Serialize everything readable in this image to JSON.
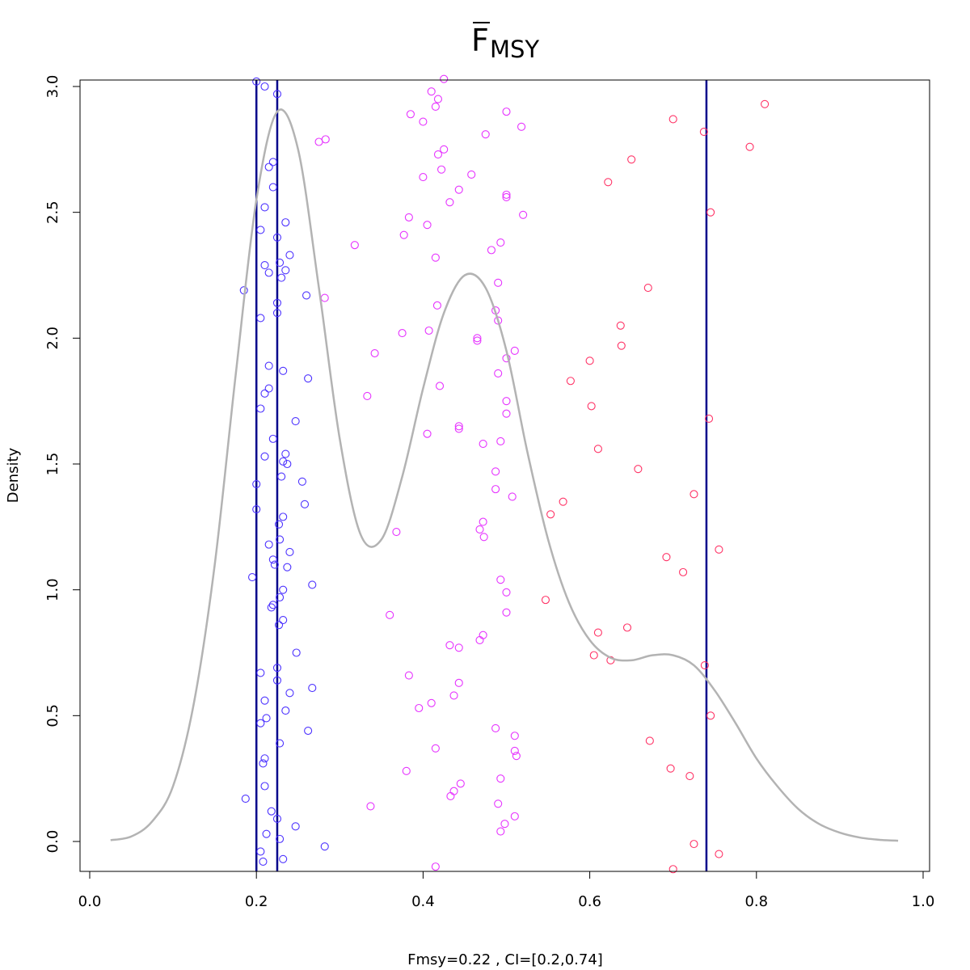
{
  "chart_data": {
    "type": "scatter",
    "title": "F",
    "title_subscript": "MSY",
    "title_overbar": true,
    "xlabel": "Fmsy=0.22 , CI=[0.2,0.74]",
    "ylabel": "Density",
    "xlim": [
      0.0,
      1.0
    ],
    "ylim": [
      -0.1,
      3.0
    ],
    "x_ticks": [
      "0.0",
      "0.2",
      "0.4",
      "0.6",
      "0.8",
      "1.0"
    ],
    "y_ticks": [
      "0.0",
      "0.5",
      "1.0",
      "1.5",
      "2.0",
      "2.5",
      "3.0"
    ],
    "grid": false,
    "legend": "none",
    "colors": {
      "density": "#b3b3b3",
      "vlines": "#00008b",
      "low": "#4d33ff",
      "mid": "#e633ff",
      "high": "#ff3366"
    },
    "vlines": [
      0.2,
      0.225,
      0.74
    ],
    "density_curve": [
      [
        0.025,
        0.005
      ],
      [
        0.05,
        0.02
      ],
      [
        0.075,
        0.08
      ],
      [
        0.1,
        0.22
      ],
      [
        0.125,
        0.55
      ],
      [
        0.15,
        1.1
      ],
      [
        0.175,
        1.85
      ],
      [
        0.2,
        2.55
      ],
      [
        0.225,
        2.9
      ],
      [
        0.25,
        2.75
      ],
      [
        0.275,
        2.2
      ],
      [
        0.3,
        1.6
      ],
      [
        0.325,
        1.22
      ],
      [
        0.35,
        1.2
      ],
      [
        0.375,
        1.45
      ],
      [
        0.4,
        1.8
      ],
      [
        0.425,
        2.1
      ],
      [
        0.45,
        2.25
      ],
      [
        0.475,
        2.2
      ],
      [
        0.5,
        1.95
      ],
      [
        0.525,
        1.55
      ],
      [
        0.55,
        1.2
      ],
      [
        0.575,
        0.95
      ],
      [
        0.6,
        0.8
      ],
      [
        0.625,
        0.73
      ],
      [
        0.65,
        0.72
      ],
      [
        0.675,
        0.74
      ],
      [
        0.7,
        0.74
      ],
      [
        0.725,
        0.7
      ],
      [
        0.75,
        0.6
      ],
      [
        0.775,
        0.47
      ],
      [
        0.8,
        0.33
      ],
      [
        0.825,
        0.22
      ],
      [
        0.85,
        0.13
      ],
      [
        0.875,
        0.07
      ],
      [
        0.9,
        0.035
      ],
      [
        0.925,
        0.015
      ],
      [
        0.95,
        0.006
      ],
      [
        0.97,
        0.003
      ]
    ],
    "series": [
      {
        "group": "low",
        "points": [
          [
            0.2,
            3.02
          ],
          [
            0.21,
            3.0
          ],
          [
            0.225,
            2.97
          ],
          [
            0.22,
            2.7
          ],
          [
            0.215,
            2.68
          ],
          [
            0.22,
            2.6
          ],
          [
            0.21,
            2.52
          ],
          [
            0.235,
            2.46
          ],
          [
            0.205,
            2.43
          ],
          [
            0.225,
            2.4
          ],
          [
            0.24,
            2.33
          ],
          [
            0.228,
            2.3
          ],
          [
            0.21,
            2.29
          ],
          [
            0.235,
            2.27
          ],
          [
            0.215,
            2.26
          ],
          [
            0.23,
            2.24
          ],
          [
            0.185,
            2.19
          ],
          [
            0.26,
            2.17
          ],
          [
            0.225,
            2.14
          ],
          [
            0.225,
            2.1
          ],
          [
            0.205,
            2.08
          ],
          [
            0.215,
            1.89
          ],
          [
            0.232,
            1.87
          ],
          [
            0.262,
            1.84
          ],
          [
            0.215,
            1.8
          ],
          [
            0.21,
            1.78
          ],
          [
            0.205,
            1.72
          ],
          [
            0.247,
            1.67
          ],
          [
            0.22,
            1.6
          ],
          [
            0.235,
            1.54
          ],
          [
            0.21,
            1.53
          ],
          [
            0.232,
            1.51
          ],
          [
            0.237,
            1.5
          ],
          [
            0.23,
            1.45
          ],
          [
            0.255,
            1.43
          ],
          [
            0.2,
            1.42
          ],
          [
            0.258,
            1.34
          ],
          [
            0.2,
            1.32
          ],
          [
            0.232,
            1.29
          ],
          [
            0.227,
            1.26
          ],
          [
            0.228,
            1.2
          ],
          [
            0.215,
            1.18
          ],
          [
            0.24,
            1.15
          ],
          [
            0.22,
            1.12
          ],
          [
            0.222,
            1.1
          ],
          [
            0.237,
            1.09
          ],
          [
            0.195,
            1.05
          ],
          [
            0.267,
            1.02
          ],
          [
            0.232,
            1.0
          ],
          [
            0.228,
            0.97
          ],
          [
            0.22,
            0.94
          ],
          [
            0.218,
            0.93
          ],
          [
            0.232,
            0.88
          ],
          [
            0.227,
            0.86
          ],
          [
            0.248,
            0.75
          ],
          [
            0.225,
            0.69
          ],
          [
            0.205,
            0.67
          ],
          [
            0.225,
            0.64
          ],
          [
            0.267,
            0.61
          ],
          [
            0.24,
            0.59
          ],
          [
            0.21,
            0.56
          ],
          [
            0.235,
            0.52
          ],
          [
            0.212,
            0.49
          ],
          [
            0.205,
            0.47
          ],
          [
            0.262,
            0.44
          ],
          [
            0.228,
            0.39
          ],
          [
            0.21,
            0.33
          ],
          [
            0.208,
            0.31
          ],
          [
            0.21,
            0.22
          ],
          [
            0.187,
            0.17
          ],
          [
            0.218,
            0.12
          ],
          [
            0.225,
            0.09
          ],
          [
            0.247,
            0.06
          ],
          [
            0.212,
            0.03
          ],
          [
            0.228,
            0.01
          ],
          [
            0.282,
            -0.02
          ],
          [
            0.205,
            -0.04
          ],
          [
            0.232,
            -0.07
          ],
          [
            0.208,
            -0.08
          ]
        ]
      },
      {
        "group": "mid",
        "points": [
          [
            0.425,
            3.03
          ],
          [
            0.41,
            2.98
          ],
          [
            0.418,
            2.95
          ],
          [
            0.415,
            2.92
          ],
          [
            0.5,
            2.9
          ],
          [
            0.385,
            2.89
          ],
          [
            0.4,
            2.86
          ],
          [
            0.518,
            2.84
          ],
          [
            0.475,
            2.81
          ],
          [
            0.283,
            2.79
          ],
          [
            0.275,
            2.78
          ],
          [
            0.425,
            2.75
          ],
          [
            0.418,
            2.73
          ],
          [
            0.422,
            2.67
          ],
          [
            0.458,
            2.65
          ],
          [
            0.4,
            2.64
          ],
          [
            0.443,
            2.59
          ],
          [
            0.5,
            2.57
          ],
          [
            0.5,
            2.56
          ],
          [
            0.432,
            2.54
          ],
          [
            0.52,
            2.49
          ],
          [
            0.383,
            2.48
          ],
          [
            0.405,
            2.45
          ],
          [
            0.377,
            2.41
          ],
          [
            0.493,
            2.38
          ],
          [
            0.318,
            2.37
          ],
          [
            0.482,
            2.35
          ],
          [
            0.415,
            2.32
          ],
          [
            0.49,
            2.22
          ],
          [
            0.282,
            2.16
          ],
          [
            0.417,
            2.13
          ],
          [
            0.487,
            2.11
          ],
          [
            0.49,
            2.07
          ],
          [
            0.407,
            2.03
          ],
          [
            0.375,
            2.02
          ],
          [
            0.465,
            2.0
          ],
          [
            0.465,
            1.99
          ],
          [
            0.51,
            1.95
          ],
          [
            0.342,
            1.94
          ],
          [
            0.5,
            1.92
          ],
          [
            0.49,
            1.86
          ],
          [
            0.42,
            1.81
          ],
          [
            0.333,
            1.77
          ],
          [
            0.5,
            1.75
          ],
          [
            0.5,
            1.7
          ],
          [
            0.443,
            1.65
          ],
          [
            0.443,
            1.64
          ],
          [
            0.405,
            1.62
          ],
          [
            0.493,
            1.59
          ],
          [
            0.472,
            1.58
          ],
          [
            0.487,
            1.47
          ],
          [
            0.487,
            1.4
          ],
          [
            0.507,
            1.37
          ],
          [
            0.472,
            1.27
          ],
          [
            0.368,
            1.23
          ],
          [
            0.468,
            1.24
          ],
          [
            0.473,
            1.21
          ],
          [
            0.493,
            1.04
          ],
          [
            0.5,
            0.99
          ],
          [
            0.36,
            0.9
          ],
          [
            0.5,
            0.91
          ],
          [
            0.472,
            0.82
          ],
          [
            0.468,
            0.8
          ],
          [
            0.432,
            0.78
          ],
          [
            0.443,
            0.77
          ],
          [
            0.383,
            0.66
          ],
          [
            0.443,
            0.63
          ],
          [
            0.437,
            0.58
          ],
          [
            0.41,
            0.55
          ],
          [
            0.395,
            0.53
          ],
          [
            0.487,
            0.45
          ],
          [
            0.51,
            0.42
          ],
          [
            0.415,
            0.37
          ],
          [
            0.51,
            0.36
          ],
          [
            0.512,
            0.34
          ],
          [
            0.38,
            0.28
          ],
          [
            0.493,
            0.25
          ],
          [
            0.445,
            0.23
          ],
          [
            0.437,
            0.2
          ],
          [
            0.433,
            0.18
          ],
          [
            0.49,
            0.15
          ],
          [
            0.337,
            0.14
          ],
          [
            0.51,
            0.1
          ],
          [
            0.498,
            0.07
          ],
          [
            0.493,
            0.04
          ],
          [
            0.415,
            -0.1
          ]
        ]
      },
      {
        "group": "high",
        "points": [
          [
            0.81,
            2.93
          ],
          [
            0.7,
            2.87
          ],
          [
            0.737,
            2.82
          ],
          [
            0.792,
            2.76
          ],
          [
            0.65,
            2.71
          ],
          [
            0.622,
            2.62
          ],
          [
            0.745,
            2.5
          ],
          [
            0.67,
            2.2
          ],
          [
            0.637,
            2.05
          ],
          [
            0.638,
            1.97
          ],
          [
            0.6,
            1.91
          ],
          [
            0.577,
            1.83
          ],
          [
            0.602,
            1.73
          ],
          [
            0.743,
            1.68
          ],
          [
            0.61,
            1.56
          ],
          [
            0.658,
            1.48
          ],
          [
            0.725,
            1.38
          ],
          [
            0.568,
            1.35
          ],
          [
            0.553,
            1.3
          ],
          [
            0.755,
            1.16
          ],
          [
            0.692,
            1.13
          ],
          [
            0.712,
            1.07
          ],
          [
            0.547,
            0.96
          ],
          [
            0.645,
            0.85
          ],
          [
            0.61,
            0.83
          ],
          [
            0.605,
            0.74
          ],
          [
            0.625,
            0.72
          ],
          [
            0.738,
            0.7
          ],
          [
            0.745,
            0.5
          ],
          [
            0.672,
            0.4
          ],
          [
            0.697,
            0.29
          ],
          [
            0.72,
            0.26
          ],
          [
            0.725,
            -0.01
          ],
          [
            0.755,
            -0.05
          ],
          [
            0.7,
            -0.11
          ]
        ]
      }
    ]
  }
}
